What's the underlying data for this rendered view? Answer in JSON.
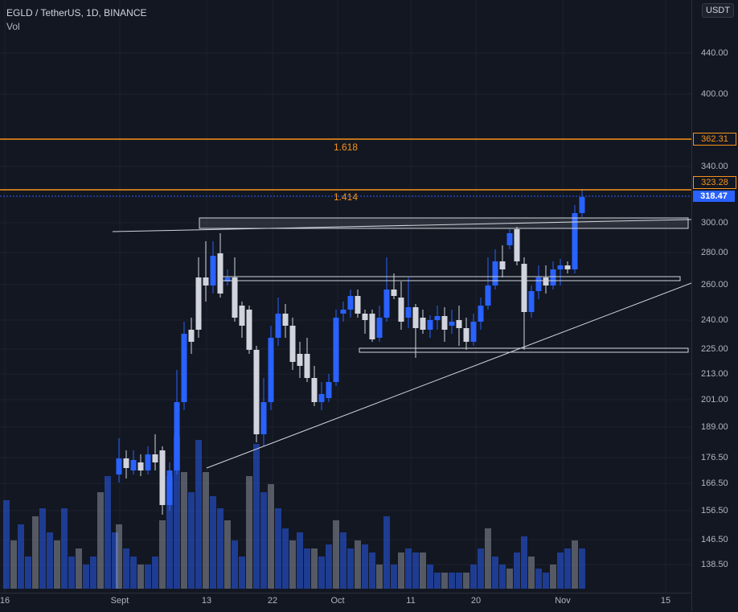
{
  "legend": {
    "symbol": "EGLD / TetherUS, 1D, BINANCE",
    "indicator": "Vol"
  },
  "currency_button": "USDT",
  "colors": {
    "up": "#2962ff",
    "down": "#d1d4dc",
    "fib": "#f7931a",
    "bg": "#131722"
  },
  "price_ticks": [
    "440.00",
    "400.00",
    "340.00",
    "300.00",
    "280.00",
    "260.00",
    "240.00",
    "225.00",
    "213.00",
    "201.00",
    "189.00",
    "176.50",
    "166.50",
    "156.50",
    "146.50",
    "138.50"
  ],
  "price_tags": {
    "fib_1618": "362.31",
    "fib_1414": "323.28",
    "last": "318.47"
  },
  "fib_levels": {
    "upper": "1.618",
    "lower": "1.414"
  },
  "time_labels": [
    "16",
    "Sept",
    "13",
    "22",
    "Oct",
    "11",
    "20",
    "Nov",
    "15"
  ]
}
